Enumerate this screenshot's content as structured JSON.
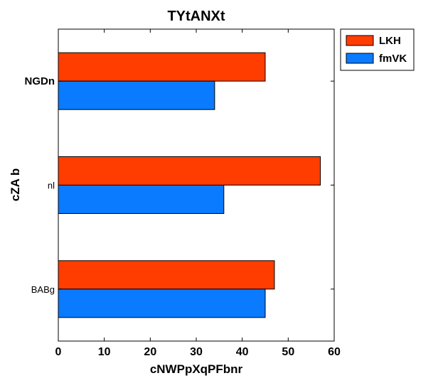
{
  "chart_data": {
    "type": "bar",
    "orientation": "horizontal",
    "title": "TYtANXt",
    "xlabel": "cNWPpXqPFbnr",
    "ylabel": "cZA b",
    "categories": [
      "NGDn",
      "nl",
      "BABg"
    ],
    "bold_categories": [
      "NGDn"
    ],
    "series": [
      {
        "name": "LKH",
        "color": "#ff3d00",
        "values": [
          45,
          57,
          47
        ]
      },
      {
        "name": "fmVK",
        "color": "#0a7bff",
        "values": [
          34,
          36,
          45
        ]
      }
    ],
    "xlim": [
      0,
      60
    ],
    "xticks": [
      "0",
      "10",
      "20",
      "30",
      "40",
      "50",
      "60"
    ],
    "grid": false,
    "legend": "top-right, outside plot"
  }
}
